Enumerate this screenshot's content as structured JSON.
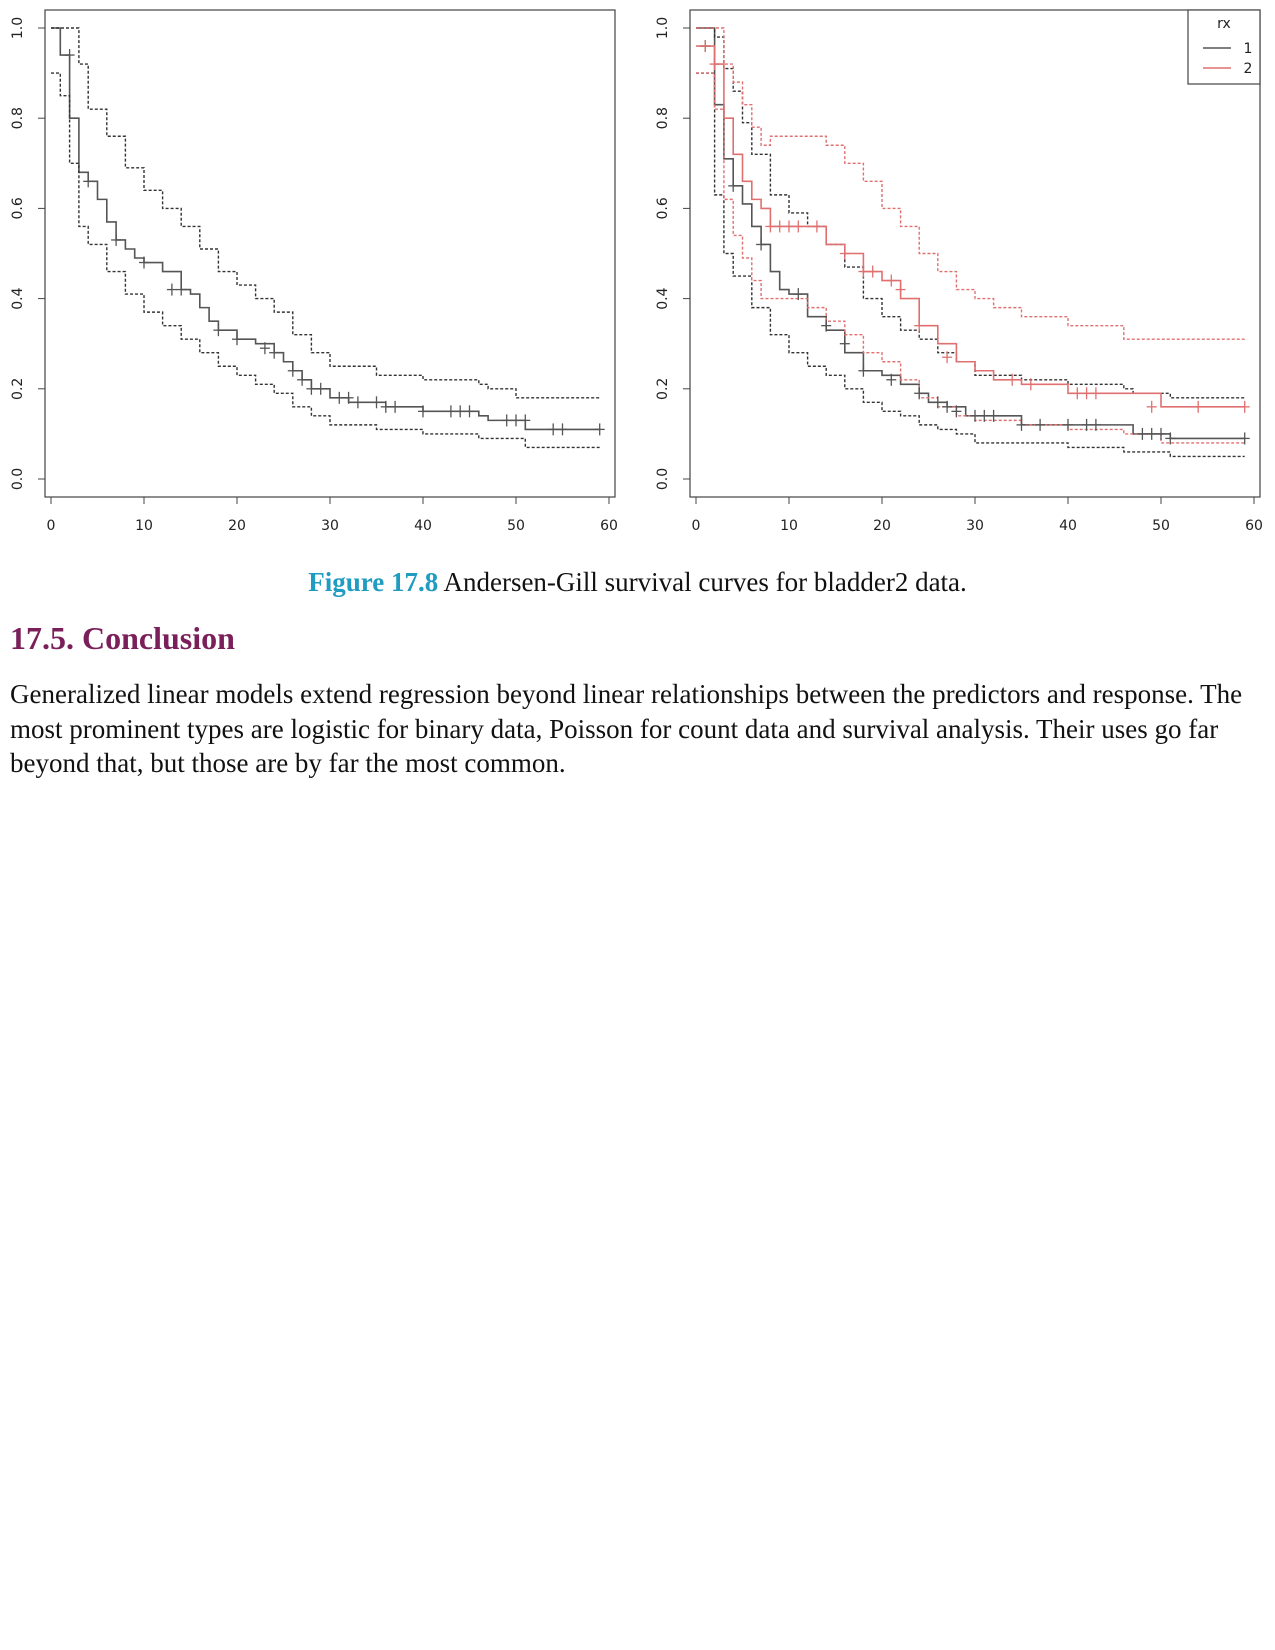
{
  "figure": {
    "label": "Figure 17.8",
    "caption": "Andersen-Gill survival curves for bladder2 data."
  },
  "section": {
    "heading": "17.5. Conclusion",
    "paragraph": "Generalized linear models extend regression beyond linear relationships between the predictors and response. The most prominent types are logistic for binary data, Poisson for count data and survival analysis. Their uses go far beyond that, but those are by far the most common."
  },
  "chart_data": [
    {
      "type": "line",
      "title": "",
      "xlabel": "",
      "ylabel": "",
      "xlim": [
        0,
        60
      ],
      "ylim": [
        0,
        1.0
      ],
      "x_ticks": [
        "0",
        "10",
        "20",
        "30",
        "40",
        "50",
        "60"
      ],
      "y_ticks": [
        "0.0",
        "0.2",
        "0.4",
        "0.6",
        "0.8",
        "1.0"
      ],
      "legend": null,
      "series": [
        {
          "role": "estimate",
          "color": "#555555",
          "dashed": false,
          "x": [
            0,
            1,
            2,
            3,
            4,
            5,
            6,
            7,
            8,
            9,
            10,
            12,
            14,
            15,
            16,
            17,
            18,
            20,
            22,
            24,
            25,
            26,
            27,
            28,
            30,
            32,
            36,
            40,
            44,
            46,
            47,
            51,
            55,
            59
          ],
          "y": [
            1.0,
            0.94,
            0.8,
            0.68,
            0.66,
            0.62,
            0.57,
            0.53,
            0.51,
            0.49,
            0.48,
            0.46,
            0.42,
            0.41,
            0.38,
            0.35,
            0.33,
            0.31,
            0.3,
            0.28,
            0.26,
            0.24,
            0.22,
            0.2,
            0.18,
            0.17,
            0.16,
            0.15,
            0.15,
            0.14,
            0.13,
            0.11,
            0.11,
            0.11
          ]
        },
        {
          "role": "upper CI",
          "color": "#333333",
          "dashed": true,
          "x": [
            0,
            2,
            3,
            4,
            6,
            8,
            10,
            12,
            14,
            16,
            18,
            20,
            22,
            24,
            26,
            28,
            30,
            35,
            40,
            46,
            47,
            50,
            59
          ],
          "y": [
            1.0,
            1.0,
            0.92,
            0.82,
            0.76,
            0.69,
            0.64,
            0.6,
            0.56,
            0.51,
            0.46,
            0.43,
            0.4,
            0.37,
            0.32,
            0.28,
            0.25,
            0.23,
            0.22,
            0.21,
            0.2,
            0.18,
            0.18
          ]
        },
        {
          "role": "lower CI",
          "color": "#333333",
          "dashed": true,
          "x": [
            0,
            1,
            2,
            3,
            4,
            6,
            8,
            10,
            12,
            14,
            16,
            18,
            20,
            22,
            24,
            26,
            28,
            30,
            35,
            40,
            46,
            47,
            51,
            59
          ],
          "y": [
            0.9,
            0.85,
            0.7,
            0.56,
            0.52,
            0.46,
            0.41,
            0.37,
            0.34,
            0.31,
            0.28,
            0.25,
            0.23,
            0.21,
            0.19,
            0.16,
            0.14,
            0.12,
            0.11,
            0.1,
            0.09,
            0.09,
            0.07,
            0.07
          ]
        }
      ],
      "censored": {
        "x": [
          2,
          4,
          7,
          10,
          13,
          14,
          18,
          20,
          23,
          24,
          26,
          27,
          28,
          29,
          31,
          32,
          33,
          35,
          36,
          37,
          40,
          43,
          44,
          45,
          49,
          50,
          51,
          54,
          55,
          59
        ],
        "y": [
          0.94,
          0.66,
          0.53,
          0.48,
          0.42,
          0.42,
          0.33,
          0.31,
          0.29,
          0.28,
          0.24,
          0.22,
          0.2,
          0.2,
          0.18,
          0.18,
          0.17,
          0.17,
          0.16,
          0.16,
          0.15,
          0.15,
          0.15,
          0.15,
          0.13,
          0.13,
          0.13,
          0.11,
          0.11,
          0.11
        ]
      }
    },
    {
      "type": "line",
      "title": "",
      "xlabel": "",
      "ylabel": "",
      "xlim": [
        0,
        60
      ],
      "ylim": [
        0,
        1.0
      ],
      "x_ticks": [
        "0",
        "10",
        "20",
        "30",
        "40",
        "50",
        "60"
      ],
      "y_ticks": [
        "0.0",
        "0.2",
        "0.4",
        "0.6",
        "0.8",
        "1.0"
      ],
      "legend": {
        "title": "rx",
        "labels": [
          "1",
          "2"
        ],
        "colors": [
          "#555555",
          "#e07070"
        ],
        "placement": "top-right"
      },
      "series": [
        {
          "name": "1",
          "role": "estimate",
          "color": "#555555",
          "dashed": false,
          "x": [
            0,
            2,
            3,
            4,
            5,
            6,
            7,
            8,
            9,
            10,
            12,
            14,
            16,
            18,
            20,
            22,
            24,
            25,
            27,
            29,
            32,
            35,
            40,
            46,
            47,
            51,
            59
          ],
          "y": [
            1.0,
            0.83,
            0.71,
            0.65,
            0.61,
            0.56,
            0.52,
            0.46,
            0.42,
            0.41,
            0.36,
            0.33,
            0.28,
            0.24,
            0.23,
            0.21,
            0.19,
            0.17,
            0.16,
            0.14,
            0.14,
            0.12,
            0.12,
            0.12,
            0.1,
            0.09,
            0.09
          ]
        },
        {
          "name": "1",
          "role": "upper CI",
          "color": "#333333",
          "dashed": true,
          "x": [
            0,
            2,
            3,
            4,
            5,
            6,
            8,
            10,
            12,
            14,
            16,
            18,
            20,
            22,
            24,
            26,
            28,
            30,
            35,
            40,
            46,
            47,
            51,
            59
          ],
          "y": [
            1.0,
            0.98,
            0.91,
            0.86,
            0.79,
            0.72,
            0.63,
            0.59,
            0.56,
            0.52,
            0.47,
            0.4,
            0.36,
            0.33,
            0.31,
            0.28,
            0.26,
            0.23,
            0.22,
            0.21,
            0.2,
            0.19,
            0.18,
            0.18
          ]
        },
        {
          "name": "1",
          "role": "lower CI",
          "color": "#333333",
          "dashed": true,
          "x": [
            0,
            2,
            3,
            4,
            6,
            8,
            10,
            12,
            14,
            16,
            18,
            20,
            22,
            24,
            26,
            28,
            30,
            35,
            40,
            46,
            51,
            59
          ],
          "y": [
            0.9,
            0.63,
            0.5,
            0.45,
            0.38,
            0.32,
            0.28,
            0.25,
            0.23,
            0.2,
            0.17,
            0.15,
            0.14,
            0.12,
            0.11,
            0.1,
            0.08,
            0.08,
            0.07,
            0.06,
            0.05,
            0.05
          ]
        },
        {
          "name": "2",
          "role": "estimate",
          "color": "#e07070",
          "dashed": false,
          "x": [
            0,
            2,
            3,
            4,
            5,
            6,
            7,
            8,
            10,
            12,
            14,
            16,
            18,
            20,
            22,
            24,
            26,
            28,
            30,
            32,
            35,
            40,
            46,
            50,
            59
          ],
          "y": [
            0.96,
            0.92,
            0.8,
            0.72,
            0.66,
            0.62,
            0.6,
            0.56,
            0.56,
            0.56,
            0.52,
            0.5,
            0.46,
            0.44,
            0.4,
            0.34,
            0.3,
            0.26,
            0.24,
            0.22,
            0.21,
            0.19,
            0.19,
            0.16,
            0.16
          ]
        },
        {
          "name": "2",
          "role": "upper CI",
          "color": "#e07070",
          "dashed": true,
          "x": [
            0,
            3,
            4,
            5,
            6,
            7,
            8,
            12,
            14,
            16,
            18,
            20,
            22,
            24,
            26,
            28,
            30,
            32,
            35,
            40,
            46,
            59
          ],
          "y": [
            1.0,
            0.92,
            0.88,
            0.83,
            0.78,
            0.74,
            0.76,
            0.76,
            0.74,
            0.7,
            0.66,
            0.6,
            0.56,
            0.5,
            0.46,
            0.42,
            0.4,
            0.38,
            0.36,
            0.34,
            0.31,
            0.31
          ]
        },
        {
          "name": "2",
          "role": "lower CI",
          "color": "#e07070",
          "dashed": true,
          "x": [
            0,
            2,
            3,
            4,
            5,
            6,
            7,
            8,
            10,
            12,
            14,
            16,
            18,
            20,
            22,
            24,
            26,
            28,
            30,
            35,
            40,
            46,
            50,
            59
          ],
          "y": [
            0.9,
            0.82,
            0.62,
            0.54,
            0.49,
            0.44,
            0.4,
            0.4,
            0.4,
            0.38,
            0.35,
            0.32,
            0.28,
            0.26,
            0.22,
            0.18,
            0.16,
            0.14,
            0.13,
            0.12,
            0.11,
            0.1,
            0.08,
            0.08
          ]
        }
      ],
      "censored": [
        {
          "name": "1",
          "x": [
            1,
            4,
            7,
            11,
            14,
            16,
            18,
            21,
            24,
            26,
            27,
            28,
            30,
            31,
            32,
            35,
            37,
            40,
            42,
            43,
            48,
            49,
            50,
            51,
            59
          ],
          "y": [
            0.96,
            0.65,
            0.52,
            0.41,
            0.34,
            0.3,
            0.24,
            0.22,
            0.19,
            0.17,
            0.16,
            0.15,
            0.14,
            0.14,
            0.14,
            0.12,
            0.12,
            0.12,
            0.12,
            0.12,
            0.1,
            0.1,
            0.1,
            0.09,
            0.09
          ]
        },
        {
          "name": "2",
          "x": [
            1,
            2,
            8,
            9,
            10,
            11,
            13,
            16,
            18,
            19,
            21,
            22,
            24,
            27,
            34,
            36,
            41,
            42,
            43,
            49,
            54,
            59
          ],
          "y": [
            0.96,
            0.92,
            0.56,
            0.56,
            0.56,
            0.56,
            0.56,
            0.5,
            0.46,
            0.46,
            0.44,
            0.42,
            0.34,
            0.27,
            0.22,
            0.21,
            0.19,
            0.19,
            0.19,
            0.16,
            0.16,
            0.16
          ]
        }
      ]
    }
  ]
}
